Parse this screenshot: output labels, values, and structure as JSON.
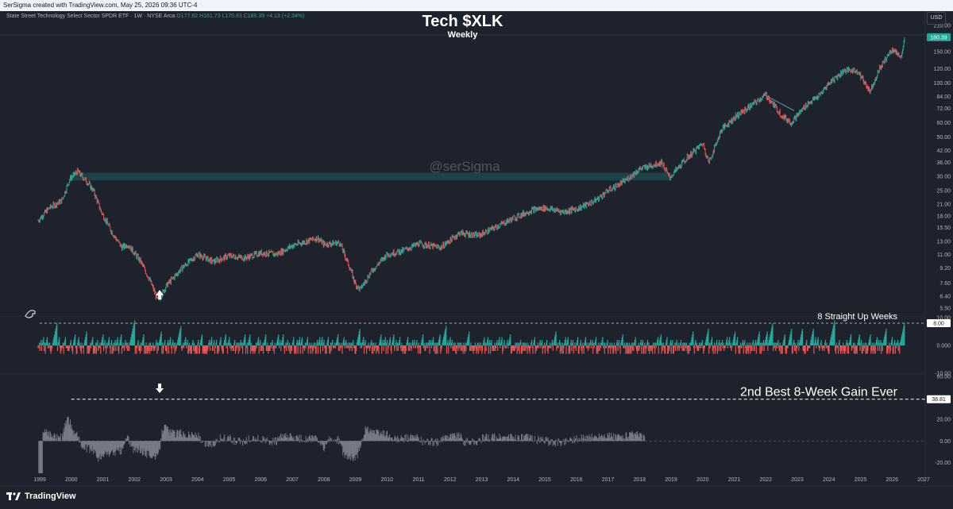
{
  "header": {
    "credit": "SerSigma created with TradingView.com, May 25, 2026 09:36 UTC-4",
    "symbol": "State Street Technology Select Sector SPDR ETF · 1W · NYSE Arca",
    "ohlc": "O177.62 H181.73 L170.83 C180.39 +4.13 (+2.34%)"
  },
  "title": "Tech $XLK",
  "subtitle": "Weekly",
  "currency": "USD",
  "watermark": "@serSigma",
  "footer": {
    "brand": "TradingView"
  },
  "colors": {
    "up": "#26a69a",
    "down": "#ef5350",
    "bg": "#1e222d",
    "hist": "#787b86",
    "zone": "#1f5c5c"
  },
  "chart_data": [
    {
      "type": "candlestick",
      "title": "Tech $XLK",
      "subtitle": "Weekly",
      "scale": "log",
      "ylim": [
        5.5,
        210
      ],
      "y_ticks": [
        210.0,
        180.0,
        150.0,
        120.0,
        100.0,
        84.0,
        72.0,
        60.0,
        50.0,
        42.0,
        36.0,
        30.0,
        25.0,
        21.0,
        18.0,
        15.5,
        13.0,
        11.0,
        9.2,
        7.6,
        6.4,
        5.5
      ],
      "y_tick_labels": [
        "210.00",
        "180.00",
        "150.00",
        "120.00",
        "100.00",
        "84.00",
        "72.00",
        "60.00",
        "50.00",
        "42.00",
        "36.00",
        "30.00",
        "25.00",
        "21.00",
        "18.00",
        "15.50",
        "13.00",
        "11.00",
        "9.20",
        "7.60",
        "6.40",
        "5.50"
      ],
      "x_range": [
        1999.0,
        2027.0
      ],
      "x_ticks": [
        "1999",
        "2000",
        "2001",
        "2002",
        "2003",
        "2004",
        "2005",
        "2006",
        "2007",
        "2008",
        "2009",
        "2010",
        "2011",
        "2012",
        "2013",
        "2014",
        "2015",
        "2016",
        "2017",
        "2018",
        "2019",
        "2020",
        "2021",
        "2022",
        "2023",
        "2024",
        "2025",
        "2026",
        "2027"
      ],
      "last_price": "180.39",
      "price_path": [
        [
          1998.95,
          17.0
        ],
        [
          1999.3,
          20.0
        ],
        [
          1999.7,
          22.0
        ],
        [
          1999.95,
          29.0
        ],
        [
          2000.2,
          32.0
        ],
        [
          2000.5,
          28.0
        ],
        [
          2000.7,
          25.0
        ],
        [
          2000.95,
          19.0
        ],
        [
          2001.3,
          14.5
        ],
        [
          2001.6,
          12.0
        ],
        [
          2001.8,
          12.5
        ],
        [
          2002.2,
          10.0
        ],
        [
          2002.5,
          7.8
        ],
        [
          2002.75,
          6.0
        ],
        [
          2003.0,
          7.3
        ],
        [
          2003.5,
          9.2
        ],
        [
          2004.0,
          11.0
        ],
        [
          2004.5,
          10.0
        ],
        [
          2005.0,
          10.8
        ],
        [
          2005.5,
          10.5
        ],
        [
          2006.0,
          11.2
        ],
        [
          2006.5,
          11.0
        ],
        [
          2007.0,
          12.3
        ],
        [
          2007.8,
          13.6
        ],
        [
          2008.0,
          12.5
        ],
        [
          2008.5,
          12.8
        ],
        [
          2008.8,
          9.5
        ],
        [
          2009.0,
          7.5
        ],
        [
          2009.15,
          7.0
        ],
        [
          2009.5,
          8.8
        ],
        [
          2010.0,
          11.0
        ],
        [
          2010.5,
          11.5
        ],
        [
          2011.0,
          12.6
        ],
        [
          2011.7,
          12.0
        ],
        [
          2012.3,
          14.5
        ],
        [
          2012.9,
          14.0
        ],
        [
          2013.5,
          15.8
        ],
        [
          2014.0,
          17.5
        ],
        [
          2014.6,
          19.5
        ],
        [
          2015.0,
          20.0
        ],
        [
          2015.6,
          19.0
        ],
        [
          2016.1,
          20.0
        ],
        [
          2016.6,
          22.0
        ],
        [
          2017.0,
          25.0
        ],
        [
          2017.5,
          28.0
        ],
        [
          2018.0,
          33.0
        ],
        [
          2018.7,
          36.0
        ],
        [
          2018.95,
          29.5
        ],
        [
          2019.5,
          38.0
        ],
        [
          2020.0,
          46.0
        ],
        [
          2020.2,
          36.0
        ],
        [
          2020.6,
          55.0
        ],
        [
          2021.0,
          64.0
        ],
        [
          2021.5,
          74.0
        ],
        [
          2022.0,
          86.0
        ],
        [
          2022.5,
          66.0
        ],
        [
          2022.8,
          60.0
        ],
        [
          2023.3,
          76.0
        ],
        [
          2023.7,
          85.0
        ],
        [
          2024.0,
          100.0
        ],
        [
          2024.5,
          118.0
        ],
        [
          2024.9,
          117.0
        ],
        [
          2025.3,
          90.0
        ],
        [
          2025.6,
          120.0
        ],
        [
          2026.0,
          155.0
        ],
        [
          2026.3,
          140.0
        ],
        [
          2026.4,
          180.39
        ]
      ],
      "resistance_zone": {
        "x_start": 2000.0,
        "x_end": 2019.0,
        "y_low": 28.5,
        "y_high": 31.5
      },
      "trendline": {
        "points": [
          [
            2021.95,
            86.0
          ],
          [
            2022.9,
            70.0
          ]
        ]
      }
    },
    {
      "type": "area",
      "title": "",
      "annotation": "8 Straight Up Weeks",
      "ylim": [
        -10,
        10
      ],
      "y_ticks": [
        10.0,
        0.0,
        -10.0
      ],
      "y_tick_labels": [
        "10.00",
        "0.000",
        "-10.00"
      ],
      "reference_line": 8.0,
      "reference_label": "8.00"
    },
    {
      "type": "bar",
      "title": "",
      "annotation": "2nd Best 8-Week Gain Ever",
      "ylim": [
        -30,
        60
      ],
      "y_ticks": [
        60.0,
        40.0,
        20.0,
        0.0,
        -20.0
      ],
      "y_tick_labels": [
        "60.00",
        "40.00",
        "20.00",
        "0.00",
        "-20.00"
      ],
      "reference_line": 38.81,
      "reference_label": "38.81"
    }
  ]
}
